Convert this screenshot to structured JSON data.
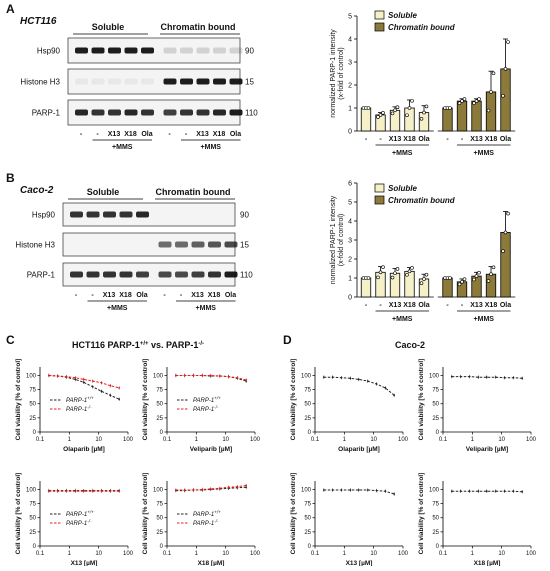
{
  "panels": {
    "A": {
      "letter": "A",
      "cell": "HCT116"
    },
    "B": {
      "letter": "B",
      "cell": "Caco-2"
    },
    "C": {
      "letter": "C",
      "title": "HCT116 PARP-1",
      "sup1": "+/+",
      "vs": " vs. PARP-1",
      "sup2": "-/-"
    },
    "D": {
      "letter": "D",
      "title": "Caco-2"
    }
  },
  "blot": {
    "headers": {
      "soluble": "Soluble",
      "chromatin": "Chromatin bound"
    },
    "rows": [
      "Hsp90",
      "Histone H3",
      "PARP-1"
    ],
    "kda_A": [
      "90",
      "15",
      "110"
    ],
    "kda_B": [
      "90",
      "15",
      "110"
    ],
    "lanes": [
      "-",
      "-",
      "X13",
      "X18",
      "Ola",
      "-",
      "-",
      "X13",
      "X18",
      "Ola"
    ],
    "mms": "+MMS"
  },
  "bar_axis": {
    "ylabel1": "normalized PARP-1 intensity",
    "ylabel2": "(x-fold of control)"
  },
  "legend": {
    "soluble": "Soluble",
    "chromatin": "Chromatin bound"
  },
  "colors": {
    "soluble": "#f5f0c8",
    "chromatin": "#8c7a3a",
    "red": "#e02020",
    "black": "#222222"
  },
  "chart_data": [
    {
      "type": "bar",
      "panel": "A",
      "categories": [
        "-",
        "-",
        "X13",
        "X18",
        "Ola",
        "-",
        "-",
        "X13",
        "X18",
        "Ola"
      ],
      "series": [
        {
          "name": "Soluble",
          "values": [
            1.0,
            0.7,
            0.9,
            1.0,
            0.8,
            null,
            null,
            null,
            null,
            null
          ]
        },
        {
          "name": "Chromatin bound",
          "values": [
            null,
            null,
            null,
            null,
            null,
            1.0,
            1.3,
            1.3,
            1.7,
            2.7
          ]
        }
      ],
      "errors": [
        0,
        0.1,
        0.15,
        0.35,
        0.3,
        0,
        0.1,
        0.1,
        0.9,
        1.3
      ],
      "ylim": [
        0,
        5
      ],
      "yticks": [
        0,
        1,
        2,
        3,
        4,
        5
      ]
    },
    {
      "type": "bar",
      "panel": "B",
      "categories": [
        "-",
        "-",
        "X13",
        "X18",
        "Ola",
        "-",
        "-",
        "X13",
        "X18",
        "Ola"
      ],
      "series": [
        {
          "name": "Soluble",
          "values": [
            1.0,
            1.3,
            1.25,
            1.35,
            0.95,
            null,
            null,
            null,
            null,
            null
          ]
        },
        {
          "name": "Chromatin bound",
          "values": [
            null,
            null,
            null,
            null,
            null,
            1.0,
            0.8,
            1.1,
            1.2,
            3.4
          ]
        }
      ],
      "errors": [
        0,
        0.3,
        0.25,
        0.2,
        0.25,
        0,
        0.15,
        0.2,
        0.4,
        1.1
      ],
      "ylim": [
        0,
        6
      ],
      "yticks": [
        0,
        1,
        2,
        3,
        4,
        5,
        6
      ]
    },
    {
      "type": "line",
      "panel": "C",
      "xlabel": "Olaparib [µM]",
      "ylabel": "Cell viability [% of control]",
      "xscale": "log",
      "xlim": [
        0.1,
        100
      ],
      "ylim": [
        0,
        115
      ],
      "yticks": [
        0,
        25,
        50,
        75,
        100
      ],
      "x": [
        0.2,
        0.4,
        0.8,
        1.6,
        3.1,
        6.3,
        12.5,
        25,
        50
      ],
      "series": [
        {
          "name": "PARP-1+/+",
          "values": [
            100,
            99,
            97,
            93,
            88,
            80,
            72,
            65,
            58
          ]
        },
        {
          "name": "PARP-1-/-",
          "values": [
            100,
            99,
            98,
            96,
            93,
            90,
            87,
            82,
            78
          ]
        }
      ]
    },
    {
      "type": "line",
      "panel": "C",
      "xlabel": "Veliparib [µM]",
      "ylabel": "Cell viability [% of control]",
      "xscale": "log",
      "xlim": [
        0.1,
        100
      ],
      "ylim": [
        0,
        115
      ],
      "yticks": [
        0,
        25,
        50,
        75,
        100
      ],
      "x": [
        0.2,
        0.4,
        0.8,
        1.6,
        3.1,
        6.3,
        12.5,
        25,
        50
      ],
      "series": [
        {
          "name": "PARP-1+/+",
          "values": [
            100,
            100,
            100,
            100,
            99,
            99,
            98,
            95,
            90
          ]
        },
        {
          "name": "PARP-1-/-",
          "values": [
            100,
            100,
            100,
            100,
            100,
            99,
            98,
            96,
            92
          ]
        }
      ]
    },
    {
      "type": "line",
      "panel": "C",
      "xlabel": "X13 [µM]",
      "ylabel": "Cell viability [% of control]",
      "xscale": "log",
      "xlim": [
        0.1,
        100
      ],
      "ylim": [
        0,
        115
      ],
      "yticks": [
        0,
        25,
        50,
        75,
        100
      ],
      "x": [
        0.2,
        0.4,
        0.8,
        1.6,
        3.1,
        6.3,
        12.5,
        25,
        50
      ],
      "series": [
        {
          "name": "PARP-1+/+",
          "values": [
            98,
            98,
            98,
            98,
            98,
            98,
            98,
            98,
            98
          ]
        },
        {
          "name": "PARP-1-/-",
          "values": [
            97,
            97,
            97,
            97,
            97,
            97,
            97,
            97,
            97
          ]
        }
      ]
    },
    {
      "type": "line",
      "panel": "C",
      "xlabel": "X18 [µM]",
      "ylabel": "Cell viability [% of control]",
      "xscale": "log",
      "xlim": [
        0.1,
        100
      ],
      "ylim": [
        0,
        115
      ],
      "yticks": [
        0,
        25,
        50,
        75,
        100
      ],
      "x": [
        0.2,
        0.4,
        0.8,
        1.6,
        3.1,
        6.3,
        12.5,
        25,
        50
      ],
      "series": [
        {
          "name": "PARP-1+/+",
          "values": [
            98,
            98,
            99,
            99,
            100,
            101,
            102,
            103,
            104
          ]
        },
        {
          "name": "PARP-1-/-",
          "values": [
            99,
            99,
            99,
            100,
            101,
            102,
            104,
            105,
            107
          ]
        }
      ]
    },
    {
      "type": "line",
      "panel": "D",
      "xlabel": "Olaparib [µM]",
      "ylabel": "Cell viability [% of control]",
      "xscale": "log",
      "xlim": [
        0.1,
        100
      ],
      "ylim": [
        0,
        115
      ],
      "yticks": [
        0,
        25,
        50,
        75,
        100
      ],
      "x": [
        0.2,
        0.4,
        0.8,
        1.6,
        3.1,
        6.3,
        12.5,
        25,
        50
      ],
      "series": [
        {
          "name": "",
          "values": [
            97,
            97,
            96,
            95,
            93,
            90,
            85,
            78,
            65
          ]
        }
      ]
    },
    {
      "type": "line",
      "panel": "D",
      "xlabel": "Veliparib [µM]",
      "ylabel": "Cell viability [% of control]",
      "xscale": "log",
      "xlim": [
        0.1,
        100
      ],
      "ylim": [
        0,
        115
      ],
      "yticks": [
        0,
        25,
        50,
        75,
        100
      ],
      "x": [
        0.2,
        0.4,
        0.8,
        1.6,
        3.1,
        6.3,
        12.5,
        25,
        50
      ],
      "series": [
        {
          "name": "",
          "values": [
            98,
            98,
            98,
            97,
            97,
            97,
            96,
            96,
            95
          ]
        }
      ]
    },
    {
      "type": "line",
      "panel": "D",
      "xlabel": "X13 [µM]",
      "ylabel": "Cell viability [% of control]",
      "xscale": "log",
      "xlim": [
        0.1,
        100
      ],
      "ylim": [
        0,
        115
      ],
      "yticks": [
        0,
        25,
        50,
        75,
        100
      ],
      "x": [
        0.2,
        0.4,
        0.8,
        1.6,
        3.1,
        6.3,
        12.5,
        25,
        50
      ],
      "series": [
        {
          "name": "",
          "values": [
            99,
            99,
            99,
            99,
            99,
            99,
            98,
            97,
            92
          ]
        }
      ]
    },
    {
      "type": "line",
      "panel": "D",
      "xlabel": "X18 [µM]",
      "ylabel": "Cell viability [% of control]",
      "xscale": "log",
      "xlim": [
        0.1,
        100
      ],
      "ylim": [
        0,
        115
      ],
      "yticks": [
        0,
        25,
        50,
        75,
        100
      ],
      "x": [
        0.2,
        0.4,
        0.8,
        1.6,
        3.1,
        6.3,
        12.5,
        25,
        50
      ],
      "series": [
        {
          "name": "",
          "values": [
            97,
            97,
            97,
            97,
            97,
            97,
            97,
            97,
            96
          ]
        }
      ]
    }
  ],
  "line_legend": {
    "wt": "PARP-1",
    "wt_sup": "+/+",
    "ko": "PARP-1",
    "ko_sup": "-/-"
  },
  "xticks": [
    "0.1",
    "1",
    "10",
    "100"
  ]
}
